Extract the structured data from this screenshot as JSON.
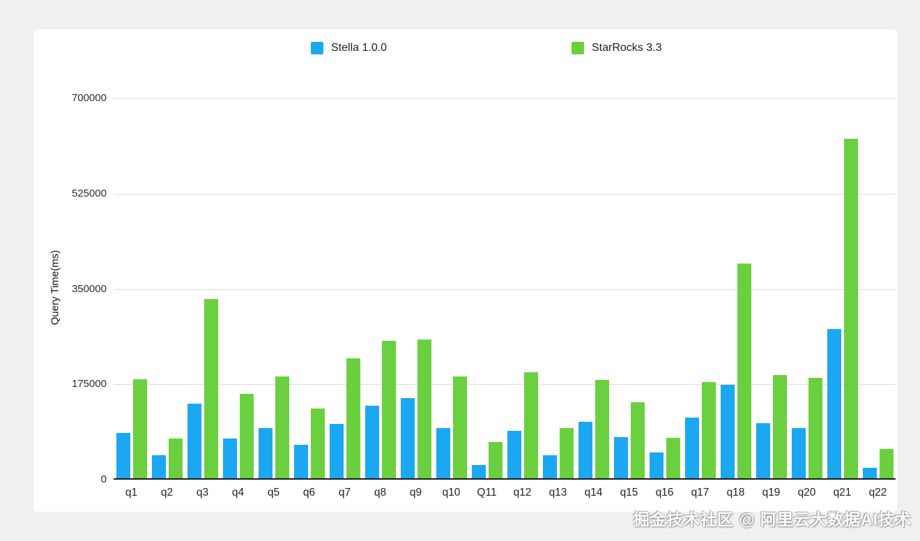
{
  "legend": {
    "items": [
      {
        "label": "Stella 1.0.0",
        "color": "#1ca7f2"
      },
      {
        "label": "StarRocks 3.3",
        "color": "#6bd03f"
      }
    ]
  },
  "chart_data": {
    "type": "bar",
    "title": "",
    "xlabel": "",
    "ylabel": "Query Time(ms)",
    "ylim": [
      0,
      700000
    ],
    "yticks": [
      0,
      175000,
      350000,
      525000,
      700000
    ],
    "grid": "horizontal",
    "legend_position": "top",
    "categories": [
      "q1",
      "q2",
      "q3",
      "q4",
      "q5",
      "q6",
      "q7",
      "q8",
      "q9",
      "q10",
      "Q11",
      "q12",
      "q13",
      "q14",
      "q15",
      "q16",
      "q17",
      "q18",
      "q19",
      "q20",
      "q21",
      "q22"
    ],
    "series": [
      {
        "name": "Stella 1.0.0",
        "color": "#1ca7f2",
        "values": [
          83000,
          42000,
          138000,
          73000,
          93000,
          62000,
          100000,
          133000,
          148000,
          93000,
          25000,
          87000,
          42000,
          104000,
          76000,
          47000,
          112000,
          172000,
          102000,
          92000,
          275000,
          19000
        ]
      },
      {
        "name": "StarRocks 3.3",
        "color": "#6bd03f",
        "values": [
          183000,
          73000,
          330000,
          156000,
          188000,
          128000,
          221000,
          253000,
          256000,
          188000,
          67000,
          195000,
          93000,
          181000,
          140000,
          74000,
          177000,
          395000,
          190000,
          185000,
          625000,
          54000
        ]
      }
    ]
  },
  "watermark": {
    "text": "掘金技术社区 @ 阿里云大数据AI技术"
  }
}
